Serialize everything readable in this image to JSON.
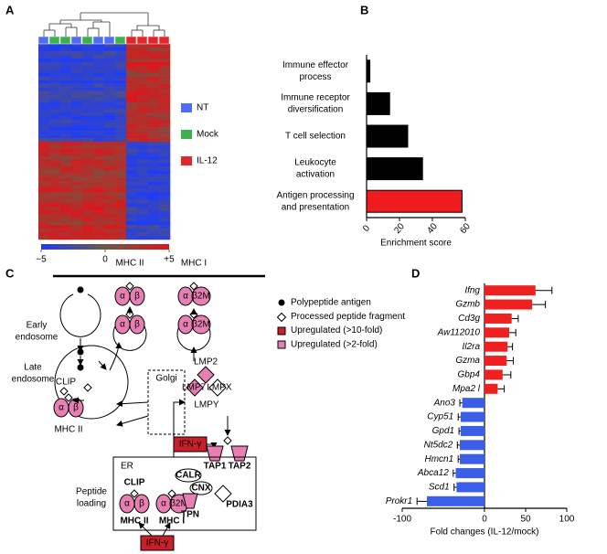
{
  "panels": [
    "A",
    "B",
    "C",
    "D"
  ],
  "chart_data": [
    {
      "type": "heatmap",
      "colorbar": {
        "lim": [
          -5,
          5
        ],
        "ticks": [
          {
            "value": -5,
            "label": "−5"
          },
          0,
          {
            "value": 5,
            "label": "+5"
          }
        ],
        "colors": [
          "#1f3cf5",
          "#6a5a48",
          "#e0141a"
        ]
      },
      "legend": [
        {
          "name": "NT",
          "color": "#4f6df2"
        },
        {
          "name": "Mock",
          "color": "#3cb04a"
        },
        {
          "name": "IL-12",
          "color": "#e3262b"
        }
      ]
    },
    {
      "type": "hbar",
      "categories": [
        [
          "Immune effector",
          "process"
        ],
        [
          "Immune receptor",
          "diversification"
        ],
        [
          "T cell selection"
        ],
        [
          "Leukocyte",
          "activation"
        ],
        [
          "Antigen processing",
          "and presentation"
        ]
      ],
      "values": [
        2,
        14,
        25,
        34,
        58
      ],
      "colors": [
        "#000000",
        "#000000",
        "#000000",
        "#000000",
        "#ee1c1c"
      ],
      "xlim": [
        0,
        60
      ],
      "xticks": [
        0,
        20,
        40,
        60
      ],
      "xlabel": "Enrichment score"
    },
    {
      "type": "hbar-error",
      "categories": [
        "Ifng",
        "Gzmb",
        "Cd3g",
        "Aw112010",
        "Il2ra",
        "Gzma",
        "Gbp4",
        "Mpa2 l",
        "Ano3",
        "Cyp51",
        "Gpd1",
        "Nt5dc2",
        "Hmcn1",
        "Abca12",
        "Scd1",
        "Prokr1"
      ],
      "values": [
        62,
        58,
        33,
        30,
        28,
        27,
        22,
        16,
        -27,
        -29,
        -29,
        -30,
        -30,
        -35,
        -34,
        -70
      ],
      "errors": [
        20,
        16,
        8,
        8,
        6,
        8,
        10,
        8,
        3,
        3,
        2,
        3,
        2,
        3,
        3,
        12
      ],
      "colors": [
        "#ee2020",
        "#ee2020",
        "#ee2020",
        "#ee2020",
        "#ee2020",
        "#ee2020",
        "#ee2020",
        "#ee2020",
        "#3a5ee8",
        "#3a5ee8",
        "#3a5ee8",
        "#3a5ee8",
        "#3a5ee8",
        "#3a5ee8",
        "#3a5ee8",
        "#3a5ee8"
      ],
      "xlim": [
        -100,
        100
      ],
      "xticks": [
        -100,
        0,
        50,
        100
      ],
      "xlabel": "Fold changes (IL-12/mock)"
    }
  ],
  "diagram": {
    "top_mhc_ii": "MHC II",
    "top_mhc_i": "MHC I",
    "early_endosome": [
      "Early",
      "endosome"
    ],
    "late_endosome": [
      "Late",
      "endosome"
    ],
    "clip": "CLIP",
    "late_mhc_ii": "MHC II",
    "golgi": "Golgi",
    "lmp2": "LMP2",
    "lmp7": "LMP7",
    "lmpx": "LMPX",
    "lmpy": "LMPY",
    "ifn_golgi": "IFN-γ",
    "tap1": "TAP1",
    "tap2": "TAP2",
    "er": "ER",
    "peptide_loading": [
      "Peptide",
      "loading"
    ],
    "calr": "CALR",
    "cnx": "CNX",
    "pdia3": "PDIA3",
    "tpn": "TPN",
    "er_clip": "CLIP",
    "er_mhc_ii": "MHC II",
    "er_mhc_i": "MHC I",
    "ifn_er": "IFN-γ",
    "subunits": [
      "α",
      "β",
      "β2M"
    ],
    "colors": {
      "high": "#c8202a",
      "mid": "#e77fb2"
    },
    "legend": [
      "Polypeptide antigen",
      "Processed peptide fragment",
      "Upregulated (>10-fold)",
      "Upregulated (>2-fold)"
    ]
  }
}
